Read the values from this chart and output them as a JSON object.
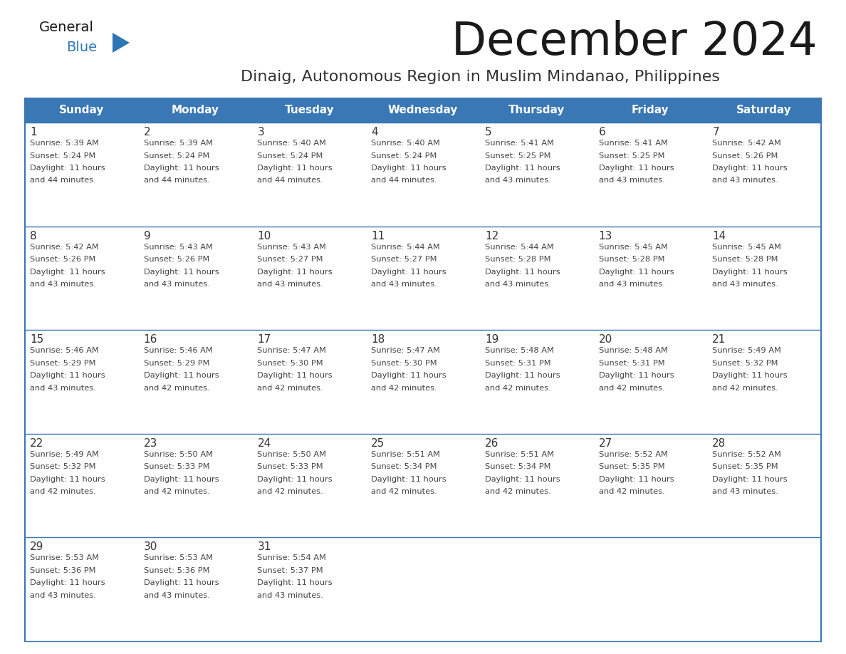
{
  "title": "December 2024",
  "subtitle": "Dinaig, Autonomous Region in Muslim Mindanao, Philippines",
  "header_bg_color": "#3a78b5",
  "header_text_color": "#ffffff",
  "day_names": [
    "Sunday",
    "Monday",
    "Tuesday",
    "Wednesday",
    "Thursday",
    "Friday",
    "Saturday"
  ],
  "cell_bg_color": "#ffffff",
  "title_color": "#1a1a1a",
  "subtitle_color": "#333333",
  "day_number_color": "#333333",
  "content_color": "#444444",
  "border_color": "#3a78b5",
  "logo_black": "#1a1a1a",
  "logo_blue": "#2e75b6",
  "logo_tri": "#2e75b6",
  "weeks": [
    [
      {
        "day": 1,
        "sunrise": "5:39 AM",
        "sunset": "5:24 PM",
        "daylight_hours": 11,
        "daylight_minutes": 44
      },
      {
        "day": 2,
        "sunrise": "5:39 AM",
        "sunset": "5:24 PM",
        "daylight_hours": 11,
        "daylight_minutes": 44
      },
      {
        "day": 3,
        "sunrise": "5:40 AM",
        "sunset": "5:24 PM",
        "daylight_hours": 11,
        "daylight_minutes": 44
      },
      {
        "day": 4,
        "sunrise": "5:40 AM",
        "sunset": "5:24 PM",
        "daylight_hours": 11,
        "daylight_minutes": 44
      },
      {
        "day": 5,
        "sunrise": "5:41 AM",
        "sunset": "5:25 PM",
        "daylight_hours": 11,
        "daylight_minutes": 43
      },
      {
        "day": 6,
        "sunrise": "5:41 AM",
        "sunset": "5:25 PM",
        "daylight_hours": 11,
        "daylight_minutes": 43
      },
      {
        "day": 7,
        "sunrise": "5:42 AM",
        "sunset": "5:26 PM",
        "daylight_hours": 11,
        "daylight_minutes": 43
      }
    ],
    [
      {
        "day": 8,
        "sunrise": "5:42 AM",
        "sunset": "5:26 PM",
        "daylight_hours": 11,
        "daylight_minutes": 43
      },
      {
        "day": 9,
        "sunrise": "5:43 AM",
        "sunset": "5:26 PM",
        "daylight_hours": 11,
        "daylight_minutes": 43
      },
      {
        "day": 10,
        "sunrise": "5:43 AM",
        "sunset": "5:27 PM",
        "daylight_hours": 11,
        "daylight_minutes": 43
      },
      {
        "day": 11,
        "sunrise": "5:44 AM",
        "sunset": "5:27 PM",
        "daylight_hours": 11,
        "daylight_minutes": 43
      },
      {
        "day": 12,
        "sunrise": "5:44 AM",
        "sunset": "5:28 PM",
        "daylight_hours": 11,
        "daylight_minutes": 43
      },
      {
        "day": 13,
        "sunrise": "5:45 AM",
        "sunset": "5:28 PM",
        "daylight_hours": 11,
        "daylight_minutes": 43
      },
      {
        "day": 14,
        "sunrise": "5:45 AM",
        "sunset": "5:28 PM",
        "daylight_hours": 11,
        "daylight_minutes": 43
      }
    ],
    [
      {
        "day": 15,
        "sunrise": "5:46 AM",
        "sunset": "5:29 PM",
        "daylight_hours": 11,
        "daylight_minutes": 43
      },
      {
        "day": 16,
        "sunrise": "5:46 AM",
        "sunset": "5:29 PM",
        "daylight_hours": 11,
        "daylight_minutes": 42
      },
      {
        "day": 17,
        "sunrise": "5:47 AM",
        "sunset": "5:30 PM",
        "daylight_hours": 11,
        "daylight_minutes": 42
      },
      {
        "day": 18,
        "sunrise": "5:47 AM",
        "sunset": "5:30 PM",
        "daylight_hours": 11,
        "daylight_minutes": 42
      },
      {
        "day": 19,
        "sunrise": "5:48 AM",
        "sunset": "5:31 PM",
        "daylight_hours": 11,
        "daylight_minutes": 42
      },
      {
        "day": 20,
        "sunrise": "5:48 AM",
        "sunset": "5:31 PM",
        "daylight_hours": 11,
        "daylight_minutes": 42
      },
      {
        "day": 21,
        "sunrise": "5:49 AM",
        "sunset": "5:32 PM",
        "daylight_hours": 11,
        "daylight_minutes": 42
      }
    ],
    [
      {
        "day": 22,
        "sunrise": "5:49 AM",
        "sunset": "5:32 PM",
        "daylight_hours": 11,
        "daylight_minutes": 42
      },
      {
        "day": 23,
        "sunrise": "5:50 AM",
        "sunset": "5:33 PM",
        "daylight_hours": 11,
        "daylight_minutes": 42
      },
      {
        "day": 24,
        "sunrise": "5:50 AM",
        "sunset": "5:33 PM",
        "daylight_hours": 11,
        "daylight_minutes": 42
      },
      {
        "day": 25,
        "sunrise": "5:51 AM",
        "sunset": "5:34 PM",
        "daylight_hours": 11,
        "daylight_minutes": 42
      },
      {
        "day": 26,
        "sunrise": "5:51 AM",
        "sunset": "5:34 PM",
        "daylight_hours": 11,
        "daylight_minutes": 42
      },
      {
        "day": 27,
        "sunrise": "5:52 AM",
        "sunset": "5:35 PM",
        "daylight_hours": 11,
        "daylight_minutes": 42
      },
      {
        "day": 28,
        "sunrise": "5:52 AM",
        "sunset": "5:35 PM",
        "daylight_hours": 11,
        "daylight_minutes": 43
      }
    ],
    [
      {
        "day": 29,
        "sunrise": "5:53 AM",
        "sunset": "5:36 PM",
        "daylight_hours": 11,
        "daylight_minutes": 43
      },
      {
        "day": 30,
        "sunrise": "5:53 AM",
        "sunset": "5:36 PM",
        "daylight_hours": 11,
        "daylight_minutes": 43
      },
      {
        "day": 31,
        "sunrise": "5:54 AM",
        "sunset": "5:37 PM",
        "daylight_hours": 11,
        "daylight_minutes": 43
      },
      null,
      null,
      null,
      null
    ]
  ]
}
